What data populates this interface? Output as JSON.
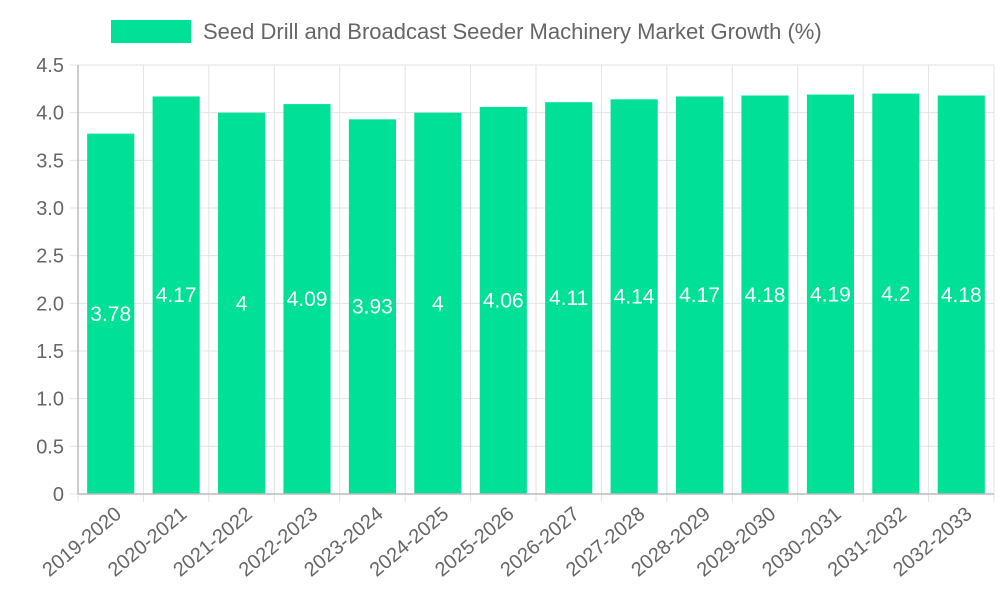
{
  "chart_data": {
    "type": "bar",
    "title": "",
    "xlabel": "",
    "ylabel": "",
    "legend": {
      "position": "top",
      "entries": [
        "Seed Drill and Broadcast Seeder Machinery Market Growth (%)"
      ]
    },
    "categories": [
      "2019-2020",
      "2020-2021",
      "2021-2022",
      "2022-2023",
      "2023-2024",
      "2024-2025",
      "2025-2026",
      "2026-2027",
      "2027-2028",
      "2028-2029",
      "2029-2030",
      "2030-2031",
      "2031-2032",
      "2032-2033"
    ],
    "series": [
      {
        "name": "Seed Drill and Broadcast Seeder Machinery Market Growth (%)",
        "color": "#00e096",
        "values": [
          3.78,
          4.17,
          4,
          4.09,
          3.93,
          4,
          4.06,
          4.11,
          4.14,
          4.17,
          4.18,
          4.19,
          4.2,
          4.18
        ]
      }
    ],
    "ylim": [
      0,
      4.5
    ],
    "yticks": [
      "0",
      "0.5",
      "1.0",
      "1.5",
      "2.0",
      "2.5",
      "3.0",
      "3.5",
      "4.0",
      "4.5"
    ],
    "grid": true
  }
}
